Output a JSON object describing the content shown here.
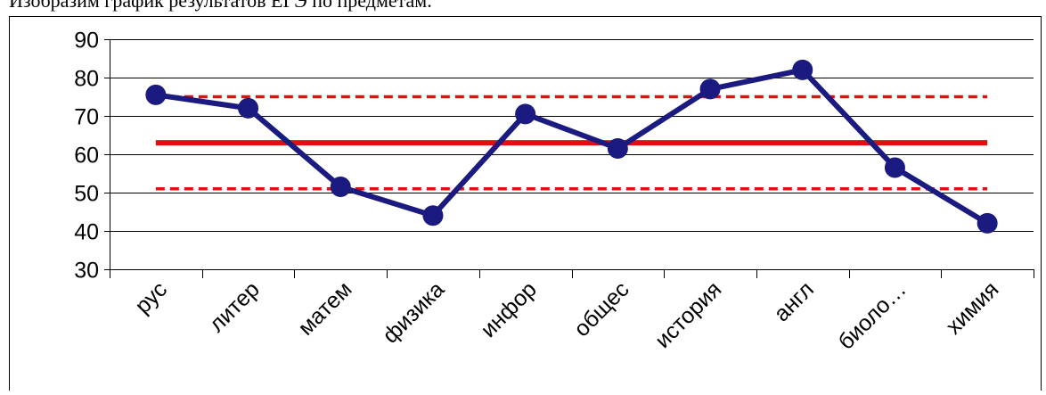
{
  "caption": "Изобразим график результатов ЕГЭ по предметам.",
  "chart_data": {
    "type": "line",
    "categories": [
      "рус",
      "литер",
      "матем",
      "физика",
      "инфор",
      "общес",
      "история",
      "англ",
      "биоло…",
      "химия"
    ],
    "series": [
      {
        "values": [
          75.5,
          72,
          51.5,
          44,
          70.5,
          61.5,
          77,
          82,
          56.5,
          42
        ],
        "color": "#1a1a80",
        "style": "line-markers"
      }
    ],
    "reference_lines": [
      {
        "value": 75,
        "color": "#e01010",
        "style": "dashed"
      },
      {
        "value": 63,
        "color": "#e01010",
        "style": "solid"
      },
      {
        "value": 51,
        "color": "#e01010",
        "style": "dashed"
      }
    ],
    "ylim": [
      30,
      90
    ],
    "yticks": [
      30,
      40,
      50,
      60,
      70,
      80,
      90
    ],
    "grid": true,
    "xlabel": "",
    "ylabel": ""
  }
}
